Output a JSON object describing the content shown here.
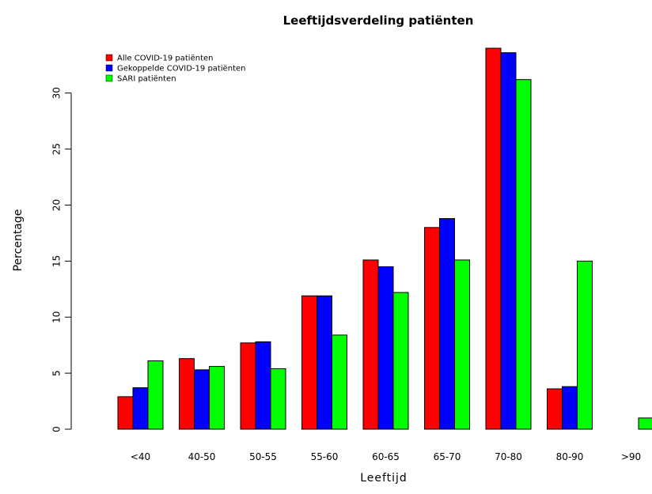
{
  "chart_data": {
    "type": "bar",
    "title": "Leeftijdsverdeling patiënten",
    "xlabel": "Leeftijd",
    "ylabel": "Percentage",
    "ylim": [
      0,
      33
    ],
    "yticks": [
      0,
      5,
      10,
      15,
      20,
      25,
      30
    ],
    "legend_position": "top-left",
    "grid": false,
    "categories": [
      "<40",
      "40-50",
      "50-55",
      "55-60",
      "60-65",
      "65-70",
      "70-80",
      "80-90",
      ">90"
    ],
    "series": [
      {
        "name": "Alle COVID-19 patiënten",
        "color": "#ff0000",
        "values": [
          2.9,
          6.3,
          7.7,
          11.9,
          15.1,
          18.0,
          34.0,
          3.6,
          0.0
        ]
      },
      {
        "name": "Gekoppelde COVID-19 patiënten",
        "color": "#0000ff",
        "values": [
          3.7,
          5.3,
          7.8,
          11.9,
          14.5,
          18.8,
          33.6,
          3.8,
          0.0
        ]
      },
      {
        "name": "SARI patiënten",
        "color": "#00ff00",
        "values": [
          6.1,
          5.6,
          5.4,
          8.4,
          12.2,
          15.1,
          31.2,
          15.0,
          1.0
        ]
      }
    ]
  }
}
